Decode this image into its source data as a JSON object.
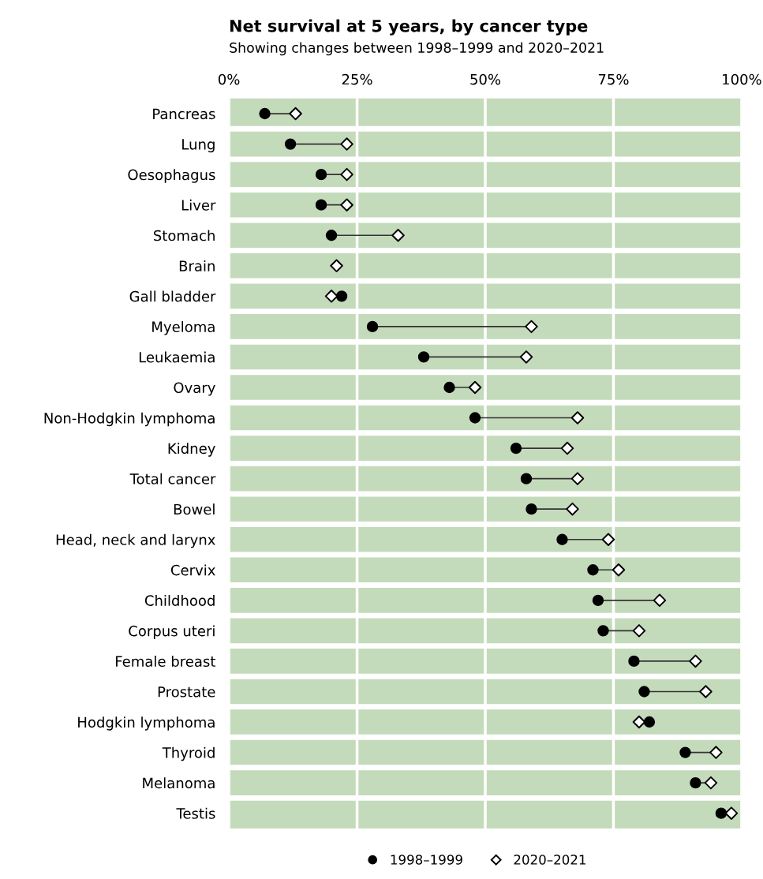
{
  "chart_data": {
    "type": "scatter",
    "title": "Net survival at 5 years, by cancer type",
    "subtitle": "Showing changes between 1998–1999 and 2020–2021",
    "categories": [
      "Pancreas",
      "Lung",
      "Oesophagus",
      "Liver",
      "Stomach",
      "Brain",
      "Gall bladder",
      "Myeloma",
      "Leukaemia",
      "Ovary",
      "Non-Hodgkin lymphoma",
      "Kidney",
      "Total cancer",
      "Bowel",
      "Head, neck and larynx",
      "Cervix",
      "Childhood",
      "Corpus uteri",
      "Female breast",
      "Prostate",
      "Hodgkin lymphoma",
      "Thyroid",
      "Melanoma",
      "Testis"
    ],
    "series": [
      {
        "name": "1998–1999",
        "color": "#000000",
        "marker": "circle",
        "values": [
          7,
          12,
          18,
          18,
          20,
          null,
          22,
          28,
          38,
          43,
          48,
          56,
          58,
          59,
          65,
          71,
          72,
          73,
          79,
          81,
          82,
          89,
          91,
          96
        ]
      },
      {
        "name": "2020–2021",
        "color": "#000000",
        "marker": "diamond",
        "values": [
          13,
          23,
          23,
          23,
          33,
          21,
          20,
          59,
          58,
          48,
          68,
          66,
          68,
          67,
          74,
          76,
          84,
          80,
          91,
          93,
          80,
          95,
          94,
          98
        ]
      }
    ],
    "xlim": [
      0,
      100
    ],
    "xticks": [
      {
        "value": 0,
        "label": "0%"
      },
      {
        "value": 25,
        "label": "25%"
      },
      {
        "value": 50,
        "label": "50%"
      },
      {
        "value": 75,
        "label": "75%"
      },
      {
        "value": 100,
        "label": "100%"
      }
    ],
    "grid": "x",
    "legend": "bottom",
    "orientation": "horizontal"
  }
}
